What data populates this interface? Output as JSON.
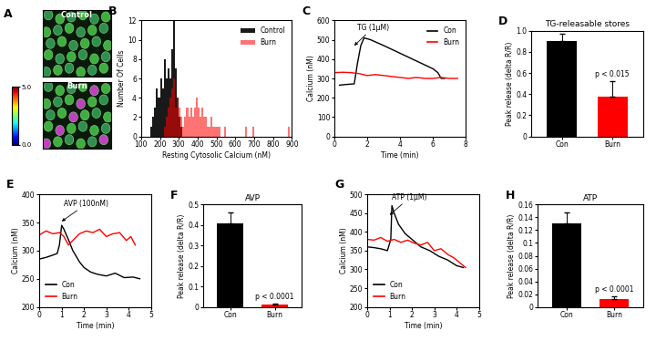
{
  "chart_data": [
    {
      "type": "image",
      "label": "A",
      "labels": [
        "Control",
        "Burn"
      ],
      "colorbar": {
        "range": [
          0,
          5
        ],
        "ticks": [
          {
            "value": 0,
            "label": "0.0"
          },
          {
            "value": 5,
            "label": "5.0"
          }
        ]
      }
    },
    {
      "type": "histogram",
      "label": "B",
      "x_label": "Resting Cytosolic Calcium (nM)",
      "y_label": "Number Of Cells",
      "bins": [
        100,
        110,
        120,
        130,
        140,
        150,
        160,
        170,
        180,
        190,
        200,
        210,
        220,
        230,
        240,
        250,
        260,
        270,
        280,
        290,
        300,
        310,
        320,
        330,
        340,
        350,
        360,
        370,
        380,
        390,
        400,
        410,
        420,
        430,
        440,
        450,
        460,
        470,
        480,
        490,
        500,
        510,
        520,
        530,
        540,
        550,
        560,
        570,
        580,
        590,
        600,
        610,
        620,
        630,
        640,
        650,
        660,
        670,
        680,
        690,
        700,
        710,
        720,
        730,
        740,
        750,
        760,
        770,
        780,
        790,
        800,
        810,
        820,
        830,
        840,
        850,
        860,
        870,
        880,
        890,
        900
      ],
      "series": [
        {
          "name": "Control",
          "color": "#000000",
          "values": [
            0,
            0,
            0,
            0,
            0,
            1,
            2,
            3,
            5,
            4,
            6,
            5,
            8,
            6,
            7,
            6,
            9,
            12,
            7,
            4,
            2,
            1,
            0,
            0,
            0,
            0,
            0,
            0,
            0,
            0,
            0,
            0,
            0,
            0,
            0,
            0,
            0,
            0,
            0,
            0,
            0,
            0,
            0,
            0,
            0,
            0,
            0,
            0,
            0,
            0,
            0,
            0,
            0,
            0,
            0,
            0,
            0,
            0,
            0,
            0,
            0,
            0,
            0,
            0,
            0,
            0,
            0,
            0,
            0,
            0,
            0,
            0,
            0,
            0,
            0,
            0,
            0,
            0,
            0,
            0
          ]
        },
        {
          "name": "Burn",
          "color": "#ff0000",
          "values": [
            0,
            0,
            0,
            0,
            0,
            0,
            0,
            0,
            0,
            0,
            0,
            0,
            1,
            2,
            3,
            4,
            5,
            6,
            3,
            4,
            3,
            2,
            1,
            2,
            3,
            2,
            3,
            2,
            3,
            4,
            3,
            2,
            3,
            2,
            2,
            1,
            1,
            2,
            1,
            1,
            1,
            1,
            0,
            0,
            1,
            0,
            0,
            0,
            0,
            0,
            0,
            0,
            0,
            0,
            0,
            1,
            0,
            0,
            0,
            1,
            0,
            0,
            0,
            0,
            0,
            0,
            0,
            0,
            0,
            0,
            0,
            0,
            0,
            0,
            0,
            0,
            0,
            0,
            1,
            0
          ]
        }
      ],
      "xlim": [
        100,
        900
      ],
      "xticks": [
        100,
        200,
        300,
        400,
        500,
        600,
        700,
        800,
        900
      ],
      "ylim": [
        0,
        12
      ],
      "yticks": [
        0,
        2,
        4,
        6,
        8,
        10,
        12
      ],
      "legend": "upper right"
    },
    {
      "type": "line",
      "label": "C",
      "x_label": "Time (min)",
      "y_label": "Calcium (nM)",
      "annotations": [
        {
          "text": "TG (1μM)",
          "x": 1.2,
          "y": 470
        }
      ],
      "series": [
        {
          "name": "Con",
          "color": "#000000",
          "x": [
            0.3,
            0.6,
            0.9,
            1.2,
            1.4,
            1.6,
            1.8,
            2.2,
            2.6,
            3,
            3.5,
            4,
            4.5,
            5,
            5.5,
            6,
            6.3,
            6.5,
            6.7
          ],
          "values": [
            265,
            268,
            270,
            272,
            380,
            470,
            510,
            500,
            485,
            470,
            450,
            430,
            410,
            390,
            370,
            350,
            330,
            300,
            300
          ]
        },
        {
          "name": "Burn",
          "color": "#ff0000",
          "x": [
            0,
            0.5,
            1,
            1.5,
            2,
            2.5,
            3,
            3.5,
            4,
            4.5,
            5,
            5.5,
            6,
            6.5,
            7,
            7.5
          ],
          "values": [
            330,
            332,
            330,
            325,
            315,
            320,
            315,
            310,
            305,
            300,
            305,
            300,
            300,
            305,
            300,
            300
          ]
        }
      ],
      "xlim": [
        0,
        8
      ],
      "xticks": [
        0,
        2,
        4,
        6,
        8
      ],
      "ylim": [
        0,
        600
      ],
      "yticks": [
        0,
        100,
        200,
        300,
        400,
        500,
        600
      ],
      "legend": "upper right"
    },
    {
      "type": "bar",
      "label": "D",
      "title": "TG-releasable stores",
      "y_label": "Peak release (delta R/R)",
      "categories": [
        "Con",
        "Burn"
      ],
      "values": [
        0.9,
        0.38
      ],
      "errors": [
        0.07,
        0.14
      ],
      "colors": [
        "#000000",
        "#ff0000"
      ],
      "annotations": [
        {
          "text": "p < 0.015",
          "category": "Burn"
        }
      ],
      "ylim": [
        0,
        1
      ],
      "yticks": [
        0,
        0.2,
        0.4,
        0.6,
        0.8,
        {
          "value": 1,
          "label": "1.0"
        }
      ]
    },
    {
      "type": "line",
      "label": "E",
      "x_label": "Time (min)",
      "y_label": "Calcium (nM)",
      "annotations": [
        {
          "text": "AVP (100nM)",
          "x": 1.0,
          "y": 352
        }
      ],
      "series": [
        {
          "name": "Con",
          "color": "#000000",
          "x": [
            0,
            0.3,
            0.6,
            0.8,
            0.9,
            1.0,
            1.1,
            1.3,
            1.5,
            1.8,
            2.0,
            2.3,
            2.6,
            3.0,
            3.4,
            3.8,
            4.2,
            4.5
          ],
          "values": [
            285,
            288,
            292,
            295,
            310,
            345,
            338,
            320,
            300,
            280,
            270,
            262,
            258,
            255,
            260,
            252,
            253,
            250
          ]
        },
        {
          "name": "Burn",
          "color": "#ff0000",
          "x": [
            0,
            0.3,
            0.6,
            0.9,
            1.1,
            1.3,
            1.5,
            1.8,
            2.1,
            2.4,
            2.7,
            3.0,
            3.3,
            3.6,
            3.9,
            4.1,
            4.3
          ],
          "values": [
            328,
            335,
            330,
            332,
            325,
            310,
            318,
            330,
            335,
            332,
            338,
            325,
            330,
            332,
            318,
            325,
            310
          ]
        }
      ],
      "xlim": [
        0,
        5
      ],
      "xticks": [
        0,
        1,
        2,
        3,
        4,
        5
      ],
      "ylim": [
        200,
        400
      ],
      "yticks": [
        200,
        250,
        300,
        350,
        400
      ],
      "legend": "lower left"
    },
    {
      "type": "bar",
      "label": "F",
      "title": "AVP",
      "y_label": "Peak release (delta R/R)",
      "categories": [
        "Con",
        "Burn"
      ],
      "values": [
        0.41,
        0.01
      ],
      "errors": [
        0.05,
        0.005
      ],
      "colors": [
        "#000000",
        "#ff0000"
      ],
      "annotations": [
        {
          "text": "p < 0.0001",
          "category": "Burn"
        }
      ],
      "ylim": [
        0,
        0.5
      ],
      "yticks": [
        0,
        0.1,
        0.2,
        0.3,
        0.4,
        0.5
      ]
    },
    {
      "type": "line",
      "label": "G",
      "x_label": "Time (min)",
      "y_label": "Calcium (nM)",
      "annotations": [
        {
          "text": "ATP (1μM)",
          "x": 1.0,
          "y": 445
        }
      ],
      "series": [
        {
          "name": "Con",
          "color": "#000000",
          "x": [
            0,
            0.3,
            0.6,
            0.9,
            1.05,
            1.1,
            1.2,
            1.4,
            1.7,
            2.0,
            2.4,
            2.8,
            3.2,
            3.6,
            4.0,
            4.3
          ],
          "values": [
            360,
            358,
            355,
            350,
            380,
            470,
            450,
            420,
            395,
            380,
            360,
            350,
            335,
            325,
            310,
            305
          ]
        },
        {
          "name": "Burn",
          "color": "#ff0000",
          "x": [
            0,
            0.3,
            0.6,
            0.9,
            1.2,
            1.5,
            1.8,
            2.1,
            2.4,
            2.7,
            3.0,
            3.3,
            3.6,
            3.9,
            4.2,
            4.4
          ],
          "values": [
            380,
            378,
            385,
            375,
            380,
            372,
            378,
            370,
            365,
            372,
            350,
            355,
            340,
            330,
            315,
            305
          ]
        }
      ],
      "xlim": [
        0,
        5
      ],
      "xticks": [
        0,
        1,
        2,
        3,
        4,
        5
      ],
      "ylim": [
        200,
        500
      ],
      "yticks": [
        200,
        250,
        300,
        350,
        400,
        450,
        500
      ],
      "legend": "lower left"
    },
    {
      "type": "bar",
      "label": "H",
      "title": "ATP",
      "y_label": "Peak release (delta R/R)",
      "categories": [
        "Con",
        "Burn"
      ],
      "values": [
        0.13,
        0.012
      ],
      "errors": [
        0.018,
        0.004
      ],
      "colors": [
        "#000000",
        "#ff0000"
      ],
      "annotations": [
        {
          "text": "p < 0.0001",
          "category": "Burn"
        }
      ],
      "ylim": [
        0,
        0.16
      ],
      "yticks": [
        0,
        0.02,
        0.04,
        0.06,
        0.08,
        0.1,
        0.12,
        0.14,
        0.16
      ]
    }
  ]
}
